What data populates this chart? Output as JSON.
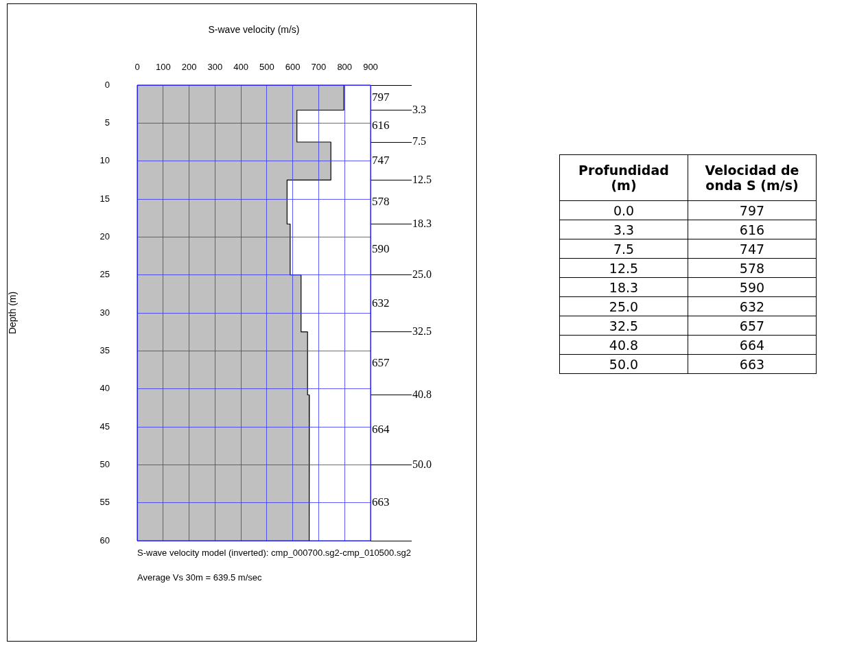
{
  "chart_data": [
    {
      "type": "area",
      "orientation": "horizontal",
      "xlabel": "S-wave velocity (m/s)",
      "ylabel": "Depth (m)",
      "x": [
        0,
        3.3,
        3.3,
        7.5,
        7.5,
        12.5,
        12.5,
        18.3,
        18.3,
        25,
        25,
        32.5,
        32.5,
        40.8,
        40.8,
        50,
        50,
        60
      ],
      "series": [
        {
          "color": "#c0c0c0",
          "values": [
            797,
            797,
            616,
            616,
            747,
            747,
            578,
            578,
            590,
            590,
            632,
            632,
            657,
            657,
            664,
            664,
            663,
            663
          ]
        }
      ],
      "xlim": [
        0,
        900
      ],
      "xticks": [
        0,
        100,
        200,
        300,
        400,
        500,
        600,
        700,
        800,
        900
      ],
      "ylim": [
        60,
        0
      ],
      "yticks": [
        0,
        5,
        10,
        15,
        20,
        25,
        30,
        35,
        40,
        45,
        50,
        55,
        60
      ],
      "y2lim": [
        60,
        0
      ],
      "y2ticks": [
        {
          "value": 0,
          "label": null
        },
        3.3,
        7.5,
        12.5,
        18.3,
        {
          "value": 25,
          "label": "25.0"
        },
        32.5,
        40.8,
        {
          "value": 50,
          "label": "50.0"
        },
        {
          "value": 60,
          "label": null
        }
      ],
      "grid": true,
      "legend": false,
      "annotations": [
        "797",
        "616",
        "747",
        "578",
        "590",
        "632",
        "657",
        "664",
        "663",
        "S-wave velocity model (inverted): cmp_000700.sg2-cmp_010500.sg2",
        "Average Vs 30m = 639.5 m/sec"
      ]
    },
    {
      "type": "other",
      "categories": [
        "Profundidad (m)",
        "Velocidad de onda S (m/s)"
      ],
      "cell_labels": [
        [
          "0.0",
          "797"
        ],
        [
          "3.3",
          "616"
        ],
        [
          "7.5",
          "747"
        ],
        [
          "12.5",
          "578"
        ],
        [
          "18.3",
          "590"
        ],
        [
          "25.0",
          "632"
        ],
        [
          "32.5",
          "657"
        ],
        [
          "40.8",
          "664"
        ],
        [
          "50.0",
          "663"
        ]
      ]
    }
  ]
}
